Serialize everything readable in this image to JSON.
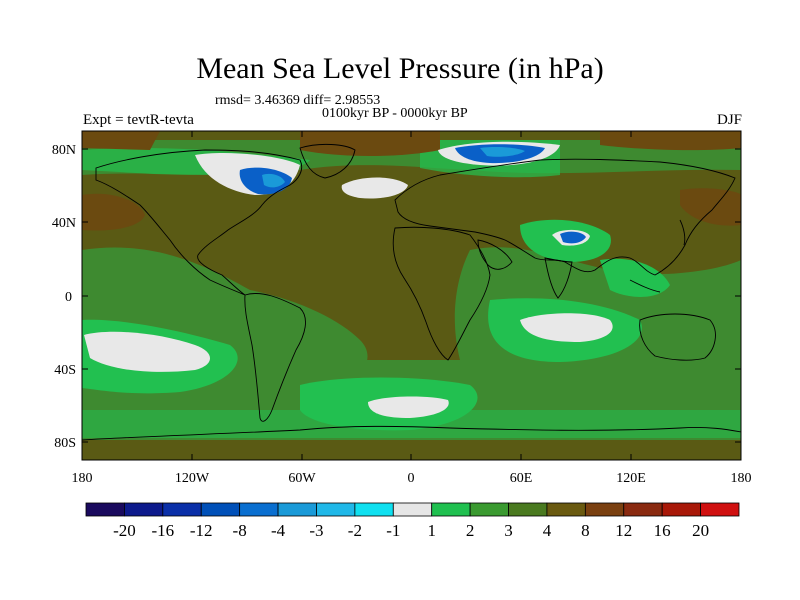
{
  "title": "Mean Sea Level Pressure (in hPa)",
  "stats": "rmsd= 3.46369 diff= 2.98553",
  "period": "0100kyr BP - 0000kyr BP",
  "experiment": "Expt = tevtR-tevta",
  "season": "DJF",
  "axes": {
    "lat_labels": [
      "80N",
      "40N",
      "0",
      "40S",
      "80S"
    ],
    "lon_labels": [
      "180",
      "120W",
      "60W",
      "0",
      "60E",
      "120E",
      "180"
    ]
  },
  "colorbar": {
    "levels": [
      "-20",
      "-16",
      "-12",
      "-8",
      "-4",
      "-3",
      "-2",
      "-1",
      "1",
      "2",
      "3",
      "4",
      "8",
      "12",
      "16",
      "20"
    ],
    "colors": [
      "#1a0a5e",
      "#0d1a8c",
      "#0a2fa8",
      "#0050b8",
      "#0a6fd0",
      "#1a9ad8",
      "#20b8e8",
      "#10e0f0",
      "#e6e6e6",
      "#20c050",
      "#3a9a30",
      "#4a7a20",
      "#6a5a10",
      "#7a4010",
      "#8a2a10",
      "#a81808",
      "#d01010"
    ]
  },
  "colors": {
    "background_field": "#5a5a14",
    "ocean_north_band": "#6b4a10",
    "positive_strong": "#8a3a10",
    "weak_positive": "#3e8a30",
    "light_green": "#22c050",
    "near_zero": "#e8e8e8",
    "negative": "#0a60c8",
    "coast": "#000000"
  }
}
